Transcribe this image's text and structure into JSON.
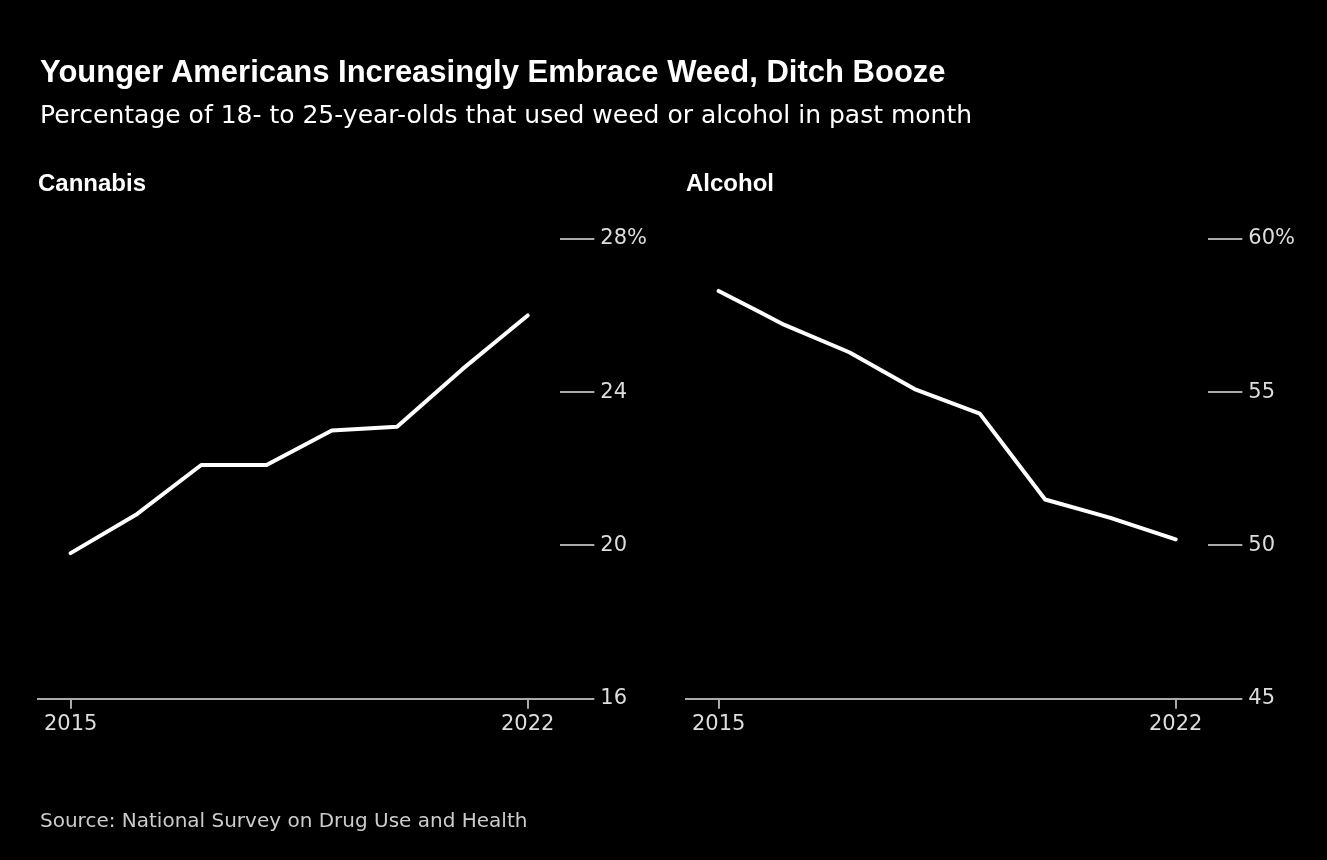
{
  "chart_data": [
    {
      "type": "other",
      "title": "Younger Americans Increasingly Embrace Weed, Ditch Booze",
      "subtitle": "Percentage of 18- to 25-year-olds that used weed or alcohol in past month",
      "annotations": [
        "Source: National Survey on Drug Use and Health"
      ]
    },
    {
      "type": "line",
      "title": "Cannabis",
      "categories": [
        "2015",
        null,
        null,
        null,
        null,
        null,
        null,
        "2022"
      ],
      "values": [
        19.8,
        20.8,
        22.1,
        22.1,
        23.0,
        23.1,
        24.6,
        26.0
      ],
      "color": "#ffffff",
      "ylim": [
        16,
        28
      ],
      "yticks": [
        16,
        20,
        24,
        {
          "value": 28,
          "label": "28%"
        }
      ]
    },
    {
      "type": "line",
      "title": "Alcohol",
      "categories": [
        "2015",
        null,
        null,
        null,
        null,
        null,
        null,
        "2022"
      ],
      "values": [
        58.3,
        57.2,
        56.3,
        55.1,
        54.3,
        51.5,
        50.9,
        50.2
      ],
      "color": "#ffffff",
      "ylim": [
        45,
        60
      ],
      "yticks": [
        45,
        50,
        55,
        {
          "value": 60,
          "label": "60%"
        }
      ]
    }
  ]
}
